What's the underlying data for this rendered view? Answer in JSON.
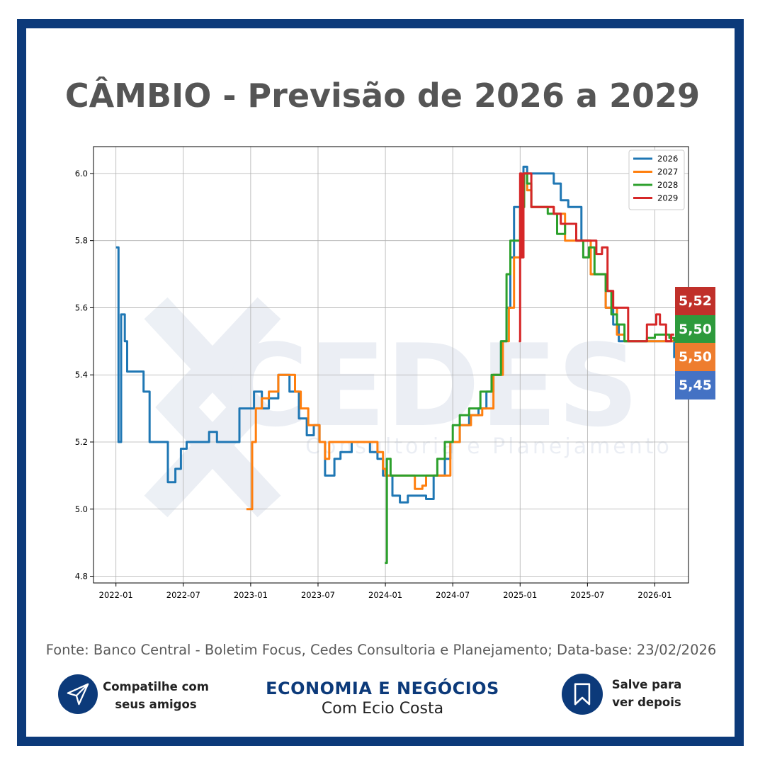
{
  "title": "CÂMBIO - Previsão de 2026 a 2029",
  "watermark": {
    "main": "CEDES",
    "sub": "Consultoria e Planejamento"
  },
  "source": "Fonte: Banco Central - Boletim Focus, Cedes Consultoria e Planejamento; Data-base: 23/02/2026",
  "badges": [
    {
      "series": "2029",
      "label": "5,52",
      "color": "#c0302a"
    },
    {
      "series": "2028",
      "label": "5,50",
      "color": "#2e9a3c"
    },
    {
      "series": "2027",
      "label": "5,50",
      "color": "#ee7d2e"
    },
    {
      "series": "2026",
      "label": "5,45",
      "color": "#4472c4"
    }
  ],
  "footer": {
    "share_line1": "Compatilhe com",
    "share_line2": "seus amigos",
    "brand_line1": "ECONOMIA E NEGÓCIOS",
    "brand_line2": "Com Ecio Costa",
    "save_line1": "Salve para",
    "save_line2": "ver depois",
    "share_icon": "paper-plane-icon",
    "save_icon": "bookmark-icon",
    "accent": "#0c3a7a"
  },
  "chart_data": {
    "type": "line",
    "title": "",
    "xlabel": "",
    "ylabel": "",
    "x_ticks": [
      "2022-01",
      "2022-07",
      "2023-01",
      "2023-07",
      "2024-01",
      "2024-07",
      "2025-01",
      "2025-07",
      "2026-01"
    ],
    "xlim": [
      "2021-11",
      "2026-04"
    ],
    "ylim": [
      4.78,
      6.08
    ],
    "y_ticks": [
      "4.8",
      "5.0",
      "5.2",
      "5.4",
      "5.6",
      "5.8",
      "6.0"
    ],
    "grid": true,
    "legend_position": "top-right",
    "series": [
      {
        "name": "2026",
        "color": "#1f77b4",
        "points": [
          [
            "2022-01-01",
            5.78
          ],
          [
            "2022-01-08",
            5.2
          ],
          [
            "2022-01-15",
            5.58
          ],
          [
            "2022-01-25",
            5.5
          ],
          [
            "2022-02-01",
            5.41
          ],
          [
            "2022-03-01",
            5.41
          ],
          [
            "2022-03-15",
            5.35
          ],
          [
            "2022-04-01",
            5.2
          ],
          [
            "2022-05-01",
            5.2
          ],
          [
            "2022-05-20",
            5.08
          ],
          [
            "2022-06-10",
            5.12
          ],
          [
            "2022-06-25",
            5.18
          ],
          [
            "2022-07-10",
            5.2
          ],
          [
            "2022-09-01",
            5.2
          ],
          [
            "2022-09-10",
            5.23
          ],
          [
            "2022-10-01",
            5.2
          ],
          [
            "2022-11-15",
            5.2
          ],
          [
            "2022-12-01",
            5.3
          ],
          [
            "2022-12-20",
            5.3
          ],
          [
            "2023-01-10",
            5.35
          ],
          [
            "2023-02-01",
            5.3
          ],
          [
            "2023-02-20",
            5.33
          ],
          [
            "2023-03-15",
            5.4
          ],
          [
            "2023-04-15",
            5.35
          ],
          [
            "2023-05-10",
            5.27
          ],
          [
            "2023-06-01",
            5.22
          ],
          [
            "2023-06-20",
            5.25
          ],
          [
            "2023-07-05",
            5.2
          ],
          [
            "2023-07-20",
            5.1
          ],
          [
            "2023-08-15",
            5.15
          ],
          [
            "2023-09-01",
            5.17
          ],
          [
            "2023-10-01",
            5.2
          ],
          [
            "2023-11-01",
            5.2
          ],
          [
            "2023-11-20",
            5.17
          ],
          [
            "2023-12-10",
            5.15
          ],
          [
            "2023-12-25",
            5.1
          ],
          [
            "2024-01-01",
            5.1
          ],
          [
            "2024-01-20",
            5.04
          ],
          [
            "2024-02-10",
            5.02
          ],
          [
            "2024-03-01",
            5.04
          ],
          [
            "2024-04-01",
            5.04
          ],
          [
            "2024-04-20",
            5.03
          ],
          [
            "2024-05-10",
            5.1
          ],
          [
            "2024-05-25",
            5.1
          ],
          [
            "2024-06-10",
            5.15
          ],
          [
            "2024-06-25",
            5.2
          ],
          [
            "2024-07-20",
            5.25
          ],
          [
            "2024-08-15",
            5.28
          ],
          [
            "2024-09-10",
            5.3
          ],
          [
            "2024-10-01",
            5.35
          ],
          [
            "2024-10-20",
            5.4
          ],
          [
            "2024-11-10",
            5.5
          ],
          [
            "2024-11-25",
            5.6
          ],
          [
            "2024-12-05",
            5.75
          ],
          [
            "2024-12-15",
            5.9
          ],
          [
            "2025-01-01",
            5.9
          ],
          [
            "2025-01-10",
            6.02
          ],
          [
            "2025-01-20",
            6.0
          ],
          [
            "2025-03-15",
            6.0
          ],
          [
            "2025-04-01",
            5.97
          ],
          [
            "2025-04-20",
            5.92
          ],
          [
            "2025-05-10",
            5.9
          ],
          [
            "2025-06-05",
            5.9
          ],
          [
            "2025-06-15",
            5.8
          ],
          [
            "2025-07-01",
            5.8
          ],
          [
            "2025-07-10",
            5.7
          ],
          [
            "2025-08-10",
            5.7
          ],
          [
            "2025-08-20",
            5.6
          ],
          [
            "2025-09-10",
            5.55
          ],
          [
            "2025-09-25",
            5.5
          ],
          [
            "2025-10-20",
            5.5
          ],
          [
            "2026-01-01",
            5.5
          ],
          [
            "2026-02-10",
            5.5
          ],
          [
            "2026-02-23",
            5.45
          ]
        ]
      },
      {
        "name": "2027",
        "color": "#ff7f0e",
        "points": [
          [
            "2022-12-20",
            5.0
          ],
          [
            "2022-12-30",
            5.0
          ],
          [
            "2023-01-05",
            5.2
          ],
          [
            "2023-01-15",
            5.3
          ],
          [
            "2023-02-01",
            5.33
          ],
          [
            "2023-02-20",
            5.35
          ],
          [
            "2023-03-15",
            5.4
          ],
          [
            "2023-04-15",
            5.4
          ],
          [
            "2023-04-30",
            5.35
          ],
          [
            "2023-05-15",
            5.3
          ],
          [
            "2023-06-05",
            5.25
          ],
          [
            "2023-07-05",
            5.2
          ],
          [
            "2023-07-20",
            5.15
          ],
          [
            "2023-08-01",
            5.2
          ],
          [
            "2023-10-01",
            5.2
          ],
          [
            "2023-11-20",
            5.2
          ],
          [
            "2023-12-10",
            5.17
          ],
          [
            "2023-12-25",
            5.12
          ],
          [
            "2024-01-01",
            5.1
          ],
          [
            "2024-03-10",
            5.1
          ],
          [
            "2024-03-20",
            5.06
          ],
          [
            "2024-04-10",
            5.07
          ],
          [
            "2024-04-20",
            5.1
          ],
          [
            "2024-06-01",
            5.1
          ],
          [
            "2024-06-25",
            5.2
          ],
          [
            "2024-07-20",
            5.25
          ],
          [
            "2024-08-20",
            5.28
          ],
          [
            "2024-09-20",
            5.3
          ],
          [
            "2024-10-20",
            5.4
          ],
          [
            "2024-11-15",
            5.5
          ],
          [
            "2024-12-01",
            5.6
          ],
          [
            "2024-12-15",
            5.75
          ],
          [
            "2025-01-05",
            5.9
          ],
          [
            "2025-01-12",
            6.0
          ],
          [
            "2025-01-20",
            5.95
          ],
          [
            "2025-02-01",
            5.9
          ],
          [
            "2025-04-01",
            5.88
          ],
          [
            "2025-05-01",
            5.8
          ],
          [
            "2025-07-01",
            5.8
          ],
          [
            "2025-07-10",
            5.7
          ],
          [
            "2025-08-20",
            5.6
          ],
          [
            "2025-09-20",
            5.52
          ],
          [
            "2025-10-10",
            5.5
          ],
          [
            "2026-02-23",
            5.5
          ]
        ]
      },
      {
        "name": "2028",
        "color": "#2ca02c",
        "points": [
          [
            "2023-12-30",
            4.84
          ],
          [
            "2024-01-05",
            5.15
          ],
          [
            "2024-01-15",
            5.1
          ],
          [
            "2024-03-01",
            5.1
          ],
          [
            "2024-04-01",
            5.1
          ],
          [
            "2024-05-10",
            5.1
          ],
          [
            "2024-05-20",
            5.15
          ],
          [
            "2024-06-10",
            5.2
          ],
          [
            "2024-07-01",
            5.25
          ],
          [
            "2024-07-20",
            5.28
          ],
          [
            "2024-08-15",
            5.3
          ],
          [
            "2024-09-15",
            5.35
          ],
          [
            "2024-10-15",
            5.4
          ],
          [
            "2024-11-10",
            5.5
          ],
          [
            "2024-11-25",
            5.7
          ],
          [
            "2024-12-05",
            5.8
          ],
          [
            "2024-12-15",
            5.8
          ],
          [
            "2025-01-01",
            5.9
          ],
          [
            "2025-01-12",
            6.0
          ],
          [
            "2025-01-20",
            5.97
          ],
          [
            "2025-02-01",
            5.9
          ],
          [
            "2025-03-15",
            5.88
          ],
          [
            "2025-04-10",
            5.82
          ],
          [
            "2025-05-01",
            5.85
          ],
          [
            "2025-06-01",
            5.8
          ],
          [
            "2025-06-20",
            5.75
          ],
          [
            "2025-07-05",
            5.78
          ],
          [
            "2025-07-20",
            5.7
          ],
          [
            "2025-08-20",
            5.65
          ],
          [
            "2025-09-05",
            5.58
          ],
          [
            "2025-09-20",
            5.55
          ],
          [
            "2025-10-10",
            5.5
          ],
          [
            "2025-12-10",
            5.51
          ],
          [
            "2026-01-01",
            5.52
          ],
          [
            "2026-02-10",
            5.51
          ],
          [
            "2026-02-23",
            5.5
          ]
        ]
      },
      {
        "name": "2029",
        "color": "#d62728",
        "points": [
          [
            "2024-12-28",
            5.5
          ],
          [
            "2025-01-01",
            6.0
          ],
          [
            "2025-01-05",
            5.75
          ],
          [
            "2025-01-10",
            6.0
          ],
          [
            "2025-01-20",
            6.0
          ],
          [
            "2025-02-01",
            5.9
          ],
          [
            "2025-03-15",
            5.9
          ],
          [
            "2025-04-01",
            5.88
          ],
          [
            "2025-04-20",
            5.85
          ],
          [
            "2025-05-15",
            5.85
          ],
          [
            "2025-06-01",
            5.8
          ],
          [
            "2025-07-10",
            5.8
          ],
          [
            "2025-07-25",
            5.76
          ],
          [
            "2025-08-10",
            5.78
          ],
          [
            "2025-08-25",
            5.65
          ],
          [
            "2025-09-10",
            5.6
          ],
          [
            "2025-10-01",
            5.6
          ],
          [
            "2025-10-20",
            5.5
          ],
          [
            "2025-11-20",
            5.5
          ],
          [
            "2025-12-10",
            5.55
          ],
          [
            "2026-01-05",
            5.58
          ],
          [
            "2026-01-15",
            5.55
          ],
          [
            "2026-02-01",
            5.5
          ],
          [
            "2026-02-15",
            5.52
          ],
          [
            "2026-02-23",
            5.52
          ]
        ]
      }
    ]
  }
}
